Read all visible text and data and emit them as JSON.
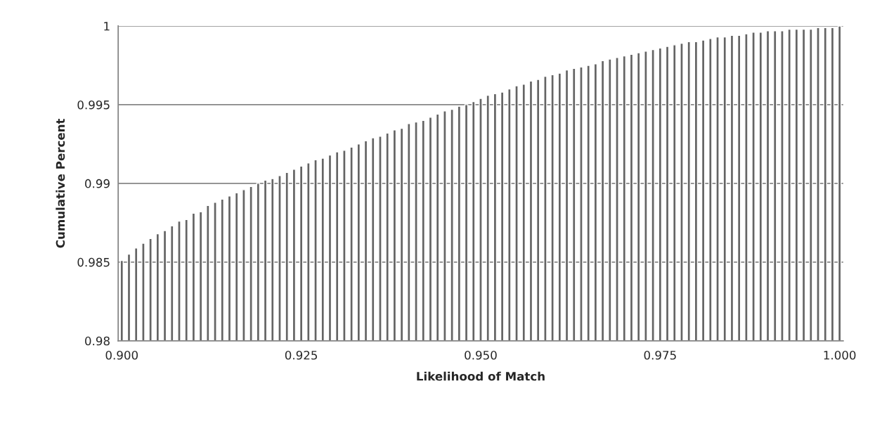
{
  "chart_data": {
    "type": "bar",
    "xlabel": "Likelihood of Match",
    "ylabel": "Cumulative Percent",
    "categories": [
      "0.900",
      null,
      null,
      null,
      null,
      null,
      null,
      null,
      null,
      null,
      null,
      null,
      null,
      null,
      null,
      null,
      null,
      null,
      null,
      null,
      null,
      null,
      null,
      null,
      null,
      "0.925",
      null,
      null,
      null,
      null,
      null,
      null,
      null,
      null,
      null,
      null,
      null,
      null,
      null,
      null,
      null,
      null,
      null,
      null,
      null,
      null,
      null,
      null,
      null,
      null,
      "0.950",
      null,
      null,
      null,
      null,
      null,
      null,
      null,
      null,
      null,
      null,
      null,
      null,
      null,
      null,
      null,
      null,
      null,
      null,
      null,
      null,
      null,
      null,
      null,
      null,
      "0.975",
      null,
      null,
      null,
      null,
      null,
      null,
      null,
      null,
      null,
      null,
      null,
      null,
      null,
      null,
      null,
      null,
      null,
      null,
      null,
      null,
      null,
      null,
      null,
      null,
      "1.000"
    ],
    "series": [
      {
        "color": "#646464",
        "values": [
          0.9851,
          0.9855,
          0.9859,
          0.9862,
          0.9865,
          0.9868,
          0.987,
          0.9873,
          0.9876,
          0.9877,
          0.9881,
          0.9882,
          0.9886,
          0.9888,
          0.989,
          0.9892,
          0.9894,
          0.9896,
          0.9898,
          0.99,
          0.9902,
          0.9903,
          0.9905,
          0.9907,
          0.9909,
          0.9911,
          0.9913,
          0.9915,
          0.9916,
          0.9918,
          0.992,
          0.9921,
          0.9923,
          0.9925,
          0.9927,
          0.9929,
          0.993,
          0.9932,
          0.9934,
          0.9935,
          0.9938,
          0.9939,
          0.994,
          0.9942,
          0.9944,
          0.9946,
          0.9947,
          0.9949,
          0.995,
          0.9952,
          0.9954,
          0.9956,
          0.9957,
          0.9958,
          0.996,
          0.9962,
          0.9963,
          0.9965,
          0.9966,
          0.9968,
          0.9969,
          0.997,
          0.9972,
          0.9973,
          0.9974,
          0.9975,
          0.9976,
          0.9978,
          0.9979,
          0.998,
          0.9981,
          0.9982,
          0.9983,
          0.9984,
          0.9985,
          0.9986,
          0.9987,
          0.9988,
          0.9989,
          0.999,
          0.999,
          0.9991,
          0.9992,
          0.9993,
          0.9993,
          0.9994,
          0.9994,
          0.9995,
          0.9996,
          0.9996,
          0.9997,
          0.9997,
          0.9997,
          0.9998,
          0.9998,
          0.9998,
          0.9998,
          0.9999,
          0.9999,
          0.9999,
          1.0
        ]
      }
    ],
    "ylim": [
      0.98,
      1
    ],
    "yticks": [
      0.98,
      0.985,
      0.99,
      0.995,
      1
    ],
    "grid": "y",
    "legend": false
  }
}
